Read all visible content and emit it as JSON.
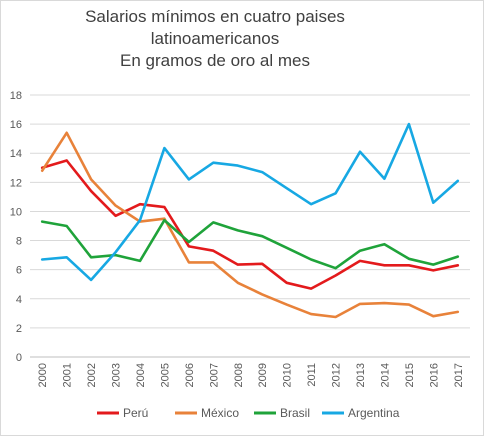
{
  "chart_data": {
    "type": "line",
    "title_lines": [
      "Salarios mínimos en cuatro paises",
      "latinoamericanos",
      "En gramos de oro al mes"
    ],
    "xlabel": "",
    "ylabel": "",
    "categories": [
      "2000",
      "2001",
      "2002",
      "2003",
      "2004",
      "2005",
      "2006",
      "2007",
      "2008",
      "2009",
      "2010",
      "2011",
      "2012",
      "2013",
      "2014",
      "2015",
      "2016",
      "2017"
    ],
    "ylim": [
      0,
      18
    ],
    "yticks": [
      "0",
      "2",
      "4",
      "6",
      "8",
      "10",
      "12",
      "14",
      "16",
      "18"
    ],
    "grid": true,
    "legend_position": "bottom",
    "series": [
      {
        "name": "Perú",
        "color": "#e31a1c",
        "values": [
          13.0,
          13.5,
          11.4,
          9.7,
          10.5,
          10.3,
          7.6,
          7.3,
          6.35,
          6.4,
          5.1,
          4.7,
          5.6,
          6.6,
          6.3,
          6.3,
          5.95,
          6.3
        ]
      },
      {
        "name": "México",
        "color": "#e8823a",
        "values": [
          12.8,
          15.4,
          12.2,
          10.4,
          9.3,
          9.5,
          6.5,
          6.5,
          5.1,
          4.3,
          3.6,
          2.95,
          2.75,
          3.65,
          3.7,
          3.6,
          2.8,
          3.1
        ]
      },
      {
        "name": "Brasil",
        "color": "#1fa33a",
        "values": [
          9.3,
          9.0,
          6.85,
          7.0,
          6.6,
          9.4,
          7.9,
          9.25,
          8.7,
          8.3,
          7.5,
          6.7,
          6.1,
          7.3,
          7.75,
          6.75,
          6.35,
          6.9
        ]
      },
      {
        "name": "Argentina",
        "color": "#17a8e3",
        "values": [
          6.7,
          6.85,
          5.3,
          7.2,
          9.4,
          14.35,
          12.2,
          13.35,
          13.15,
          12.7,
          11.6,
          10.5,
          11.25,
          14.1,
          12.25,
          16.0,
          10.6,
          12.1
        ]
      }
    ]
  }
}
